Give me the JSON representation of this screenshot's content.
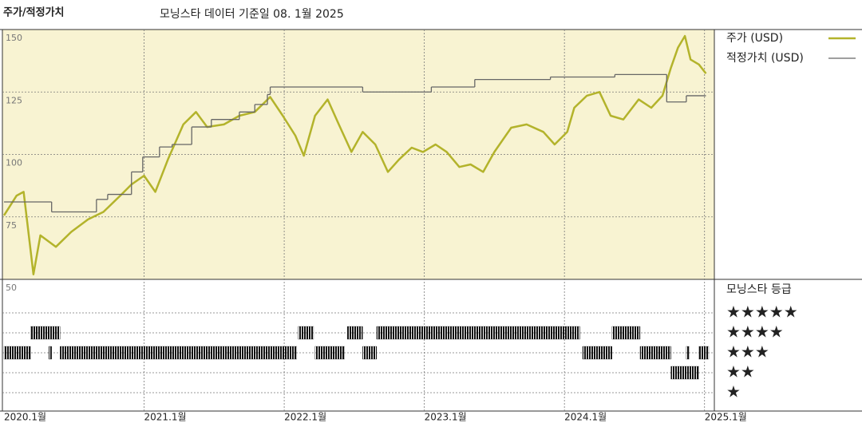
{
  "chart_data": [
    {
      "type": "line",
      "title": "주가/적정가치",
      "subtitle": "모닝스타 데이터 기준일 08. 1월 2025",
      "xlim": [
        2020,
        2025.07
      ],
      "xticks": [
        {
          "value": 2020,
          "label": "2020.1월"
        },
        {
          "value": 2021,
          "label": "2021.1월"
        },
        {
          "value": 2022,
          "label": "2022.1월"
        },
        {
          "value": 2023,
          "label": "2023.1월"
        },
        {
          "value": 2024,
          "label": "2024.1월"
        },
        {
          "value": 2025,
          "label": "2025.1월"
        }
      ],
      "ylim": [
        50,
        150
      ],
      "yticks": [
        50,
        75,
        100,
        125,
        150
      ],
      "grid": true,
      "series": [
        {
          "name": "주가 (USD)",
          "color": "#b3b32b",
          "x": [
            2020.0,
            2020.09,
            2020.14,
            2020.21,
            2020.26,
            2020.37,
            2020.48,
            2020.6,
            2020.71,
            2020.83,
            2020.91,
            2021.0,
            2021.08,
            2021.17,
            2021.28,
            2021.37,
            2021.45,
            2021.57,
            2021.68,
            2021.79,
            2021.9,
            2021.99,
            2022.08,
            2022.14,
            2022.22,
            2022.31,
            2022.39,
            2022.48,
            2022.56,
            2022.65,
            2022.74,
            2022.82,
            2022.91,
            2022.99,
            2023.08,
            2023.16,
            2023.25,
            2023.33,
            2023.42,
            2023.5,
            2023.62,
            2023.73,
            2023.85,
            2023.93,
            2024.02,
            2024.07,
            2024.16,
            2024.25,
            2024.33,
            2024.42,
            2024.53,
            2024.62,
            2024.7,
            2024.76,
            2024.81,
            2024.86,
            2024.9,
            2024.96,
            2025.01
          ],
          "values": [
            75.6,
            83.5,
            85,
            52,
            67.6,
            63,
            69,
            74,
            77,
            83.5,
            88,
            91.5,
            85,
            98,
            112,
            117,
            111,
            112,
            115.5,
            117,
            123,
            115.5,
            107.5,
            99.5,
            115.5,
            122,
            112,
            101,
            109,
            104,
            93,
            98,
            102.7,
            101,
            104,
            101,
            95,
            96,
            93,
            101,
            110.7,
            112,
            109,
            104,
            109,
            118.7,
            123.5,
            125,
            115.5,
            114,
            122,
            118.7,
            123.5,
            134.7,
            142.7,
            147.4,
            138,
            136,
            132.4
          ]
        },
        {
          "name": "적정가치 (USD)",
          "color": "#666666",
          "step": true,
          "x": [
            2020.0,
            2020.34,
            2020.66,
            2020.74,
            2020.91,
            2020.99,
            2021.11,
            2021.2,
            2021.34,
            2021.48,
            2021.68,
            2021.79,
            2021.88,
            2021.9,
            2022.56,
            2023.05,
            2023.36,
            2023.9,
            2024.36,
            2024.73,
            2024.87,
            2025.01
          ],
          "values": [
            81,
            77,
            82,
            84,
            93,
            99,
            103,
            104,
            111,
            114,
            117,
            120,
            124,
            127,
            125,
            127,
            130,
            131,
            132,
            121,
            123.5,
            123.5
          ]
        }
      ]
    },
    {
      "type": "rating",
      "title": "모닝스타 등급",
      "levels": [
        {
          "value": 5,
          "label": "★★★★★"
        },
        {
          "value": 4,
          "label": "★★★★"
        },
        {
          "value": 3,
          "label": "★★★"
        },
        {
          "value": 2,
          "label": "★★"
        },
        {
          "value": 1,
          "label": "★"
        }
      ],
      "color": "#111111",
      "periods": [
        {
          "stars": 3,
          "start": 2020.0,
          "end": 2020.19
        },
        {
          "stars": 4,
          "start": 2020.19,
          "end": 2020.4
        },
        {
          "stars": 3,
          "start": 2020.32,
          "end": 2020.34
        },
        {
          "stars": 3,
          "start": 2020.4,
          "end": 2022.09
        },
        {
          "stars": 4,
          "start": 2022.1,
          "end": 2022.21
        },
        {
          "stars": 3,
          "start": 2022.22,
          "end": 2022.43
        },
        {
          "stars": 4,
          "start": 2022.45,
          "end": 2022.56
        },
        {
          "stars": 3,
          "start": 2022.56,
          "end": 2022.66
        },
        {
          "stars": 4,
          "start": 2022.66,
          "end": 2024.11
        },
        {
          "stars": 3,
          "start": 2024.13,
          "end": 2024.34
        },
        {
          "stars": 4,
          "start": 2024.34,
          "end": 2024.54
        },
        {
          "stars": 3,
          "start": 2024.54,
          "end": 2024.76
        },
        {
          "stars": 2,
          "start": 2024.76,
          "end": 2024.96
        },
        {
          "stars": 3,
          "start": 2024.87,
          "end": 2024.89
        },
        {
          "stars": 3,
          "start": 2024.96,
          "end": 2025.03
        }
      ]
    }
  ]
}
